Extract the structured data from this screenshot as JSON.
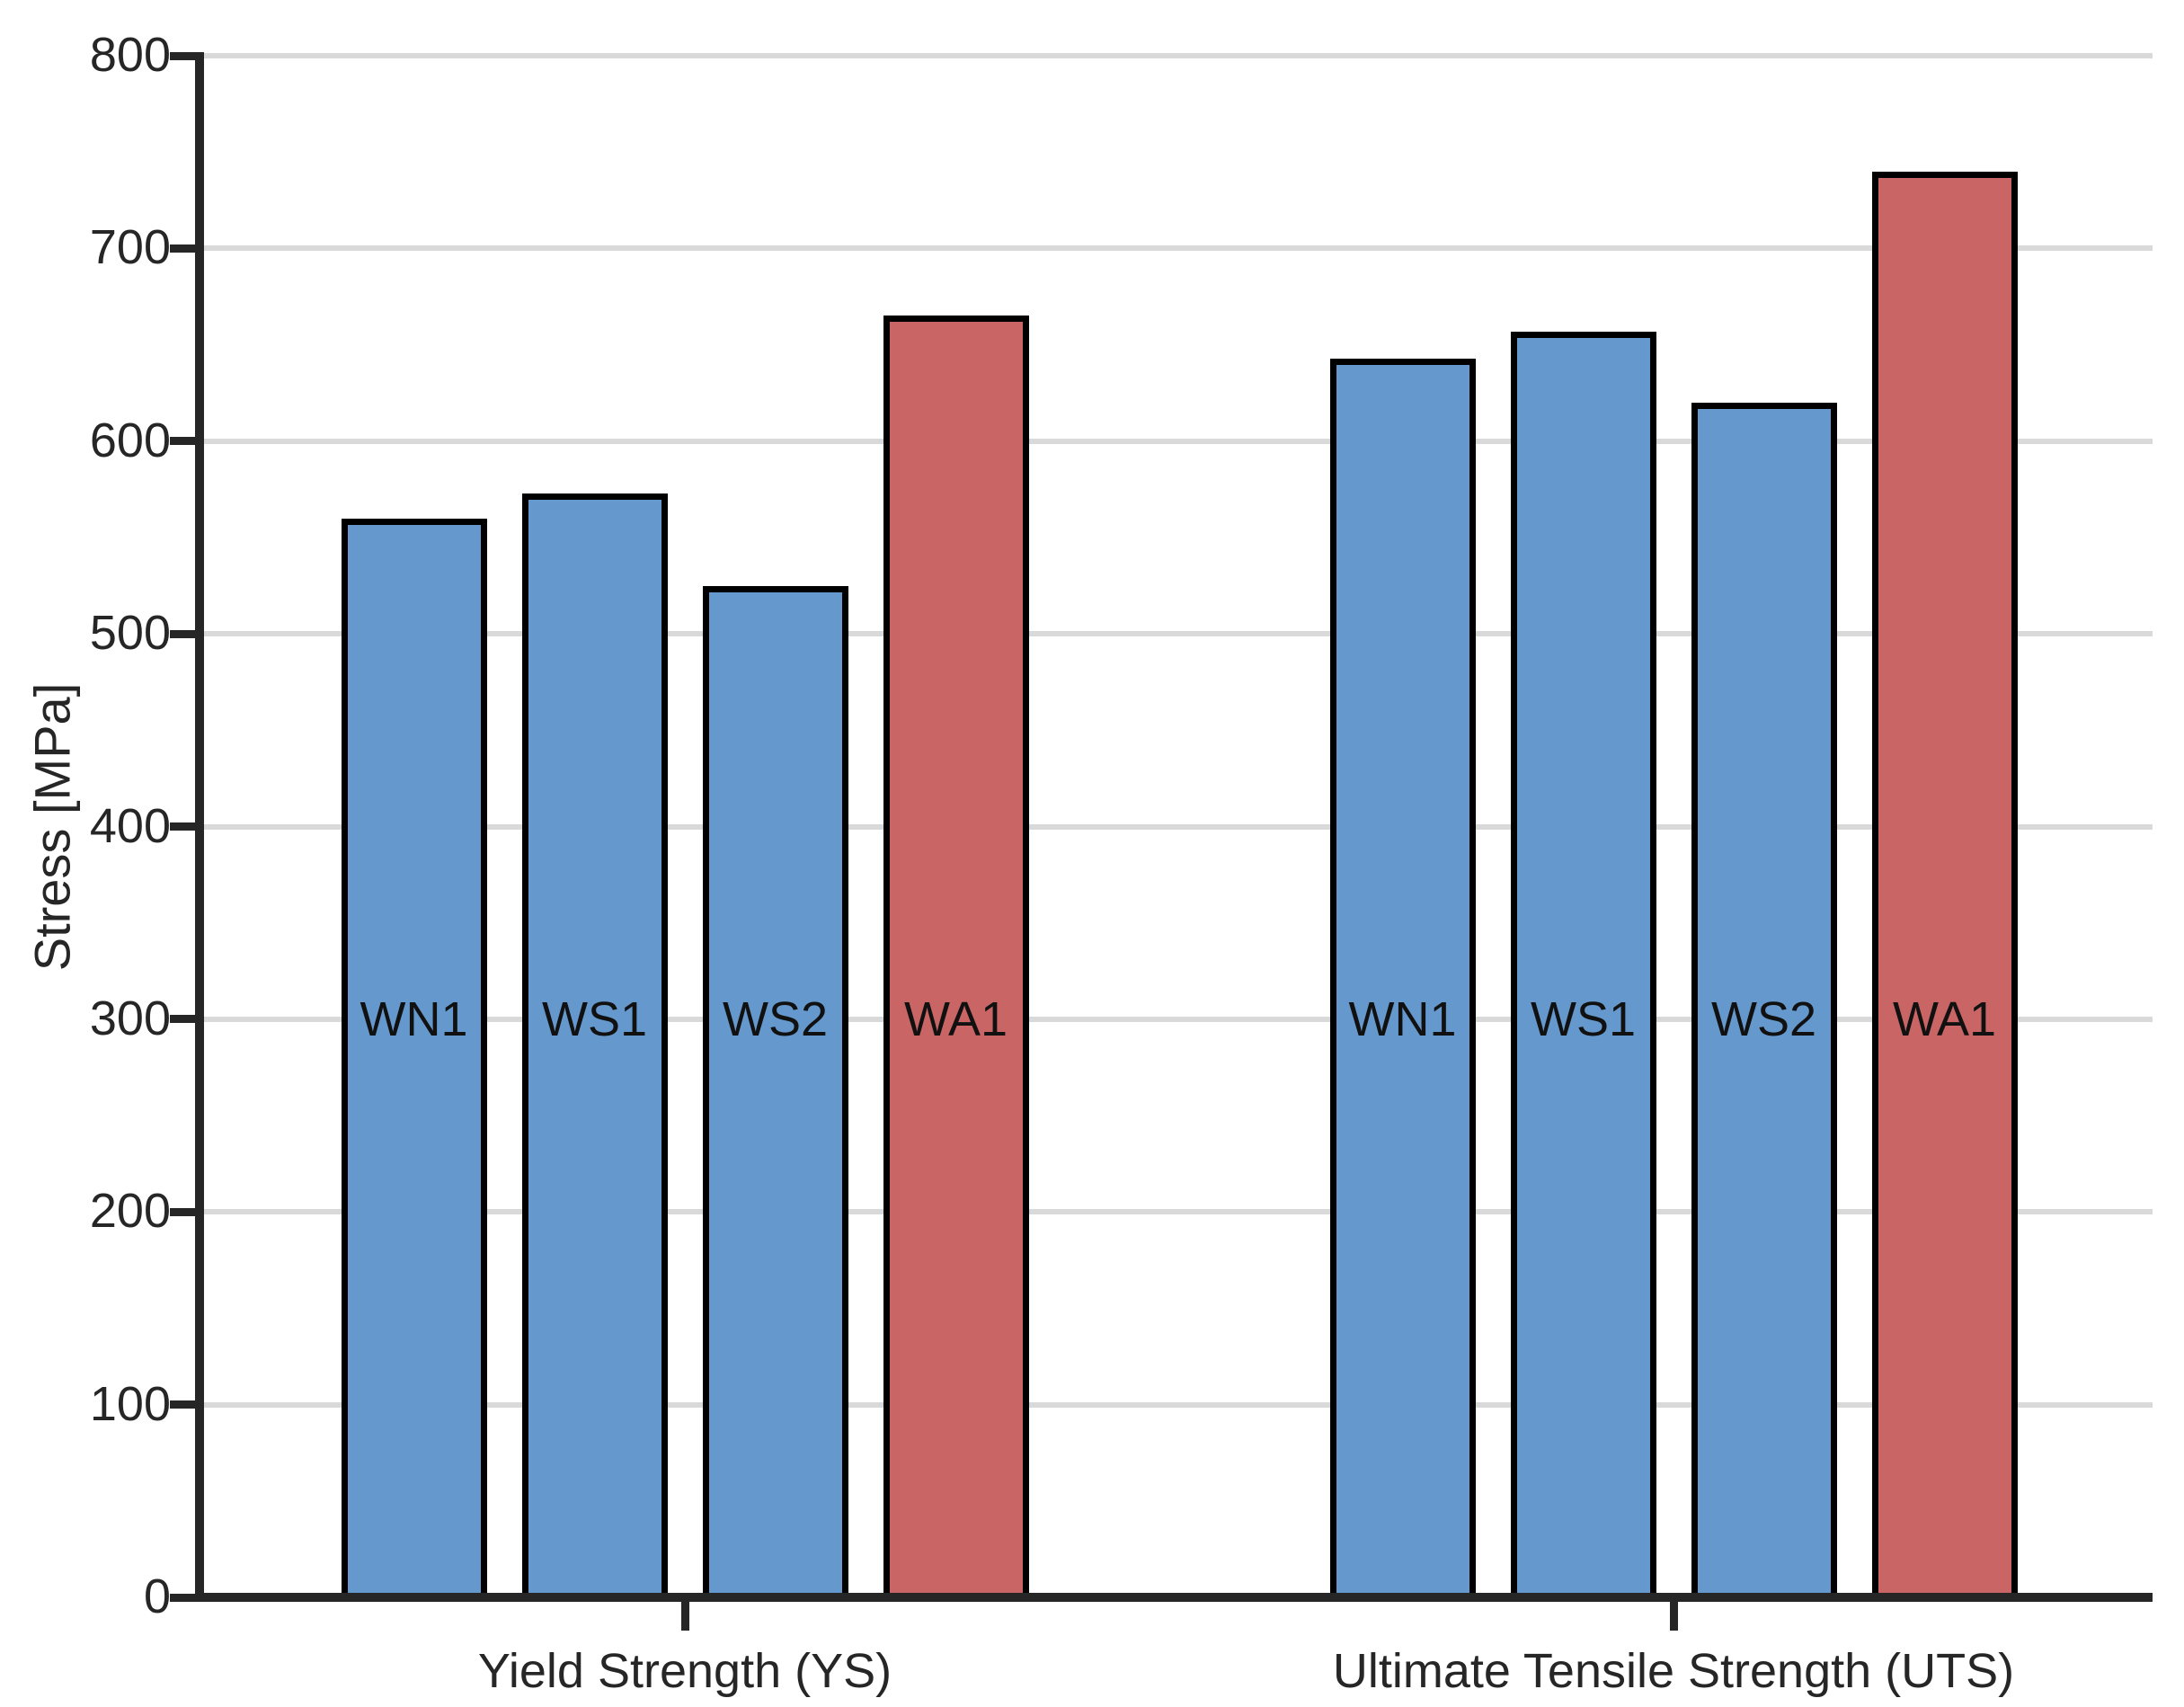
{
  "chart_data": {
    "type": "bar",
    "title": "",
    "xlabel": "",
    "ylabel": "Stress [MPa]",
    "ylim": [
      0,
      800
    ],
    "ytick_step": 100,
    "yticks": [
      0,
      100,
      200,
      300,
      400,
      500,
      600,
      700,
      800
    ],
    "grid": "horizontal",
    "legend_position": "none",
    "bar_labels": "series name drawn inside each bar",
    "bar_label_y": 300,
    "categories": [
      "Yield Strength (YS)",
      "Ultimate Tensile Strength (UTS)"
    ],
    "series": [
      {
        "name": "WN1",
        "values": [
          560,
          643
        ],
        "color": "#6598cd"
      },
      {
        "name": "WS1",
        "values": [
          573,
          657
        ],
        "color": "#6598cd"
      },
      {
        "name": "WS2",
        "values": [
          525,
          620
        ],
        "color": "#6598cd"
      },
      {
        "name": "WA1",
        "values": [
          665,
          740
        ],
        "color": "#ca6566"
      }
    ],
    "colors": {
      "blue_bar": "#6598cd",
      "red_bar": "#ca6566",
      "bar_edge": "#000000",
      "axis": "#262626",
      "grid": "#d9d9d9",
      "background": "#ffffff"
    }
  }
}
